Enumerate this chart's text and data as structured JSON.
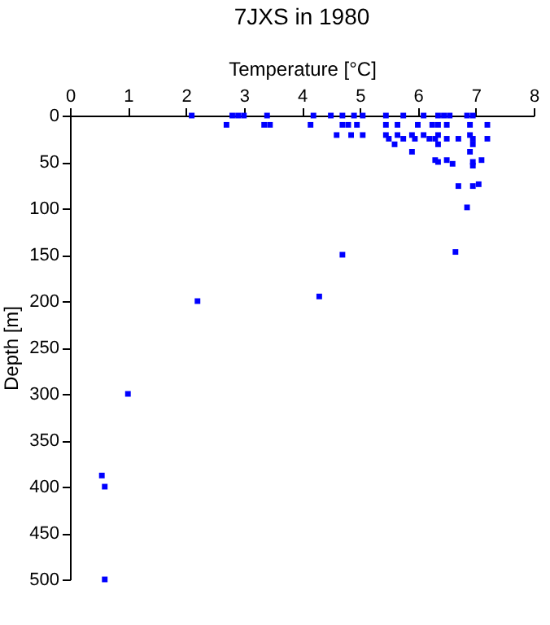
{
  "chart_data": {
    "type": "scatter",
    "title": "7JXS in 1980",
    "xlabel": "Temperature [°C]",
    "ylabel": "Depth [m]",
    "marker": "square",
    "grid": false,
    "xlim": [
      0,
      8
    ],
    "xticks": [
      0,
      1,
      2,
      3,
      4,
      5,
      6,
      7,
      8
    ],
    "ylim": [
      500,
      0
    ],
    "yticks": [
      0,
      50,
      100,
      150,
      200,
      250,
      300,
      350,
      400,
      450,
      500
    ],
    "series": [
      {
        "color": "#0000ff",
        "x": [
          2.1,
          2.8,
          2.9,
          3.0,
          3.4,
          4.2,
          4.5,
          4.7,
          4.9,
          5.05,
          5.45,
          5.75,
          6.1,
          6.35,
          6.45,
          6.55,
          6.85,
          6.95,
          2.7,
          3.35,
          3.45,
          4.15,
          4.7,
          4.8,
          4.95,
          5.45,
          5.65,
          6.0,
          6.25,
          6.35,
          6.5,
          6.9,
          7.2,
          4.6,
          4.85,
          5.05,
          5.45,
          5.65,
          5.9,
          6.1,
          6.35,
          6.9,
          7.2,
          5.5,
          5.75,
          5.95,
          6.2,
          6.3,
          6.5,
          6.7,
          6.95,
          5.6,
          6.35,
          6.95,
          5.9,
          6.9,
          6.3,
          6.35,
          6.5,
          6.6,
          6.95,
          7.1,
          6.95,
          6.7,
          6.95,
          7.05,
          6.85,
          6.65,
          4.7,
          4.3,
          2.2,
          1.0,
          0.55,
          0.6,
          0.6
        ],
        "values": [
          0,
          0,
          0,
          0,
          0,
          0,
          0,
          0,
          0,
          0,
          0,
          0,
          0,
          0,
          0,
          0,
          0,
          0,
          10,
          10,
          10,
          10,
          10,
          10,
          10,
          10,
          10,
          10,
          10,
          10,
          10,
          10,
          10,
          21,
          21,
          21,
          21,
          21,
          21,
          21,
          21,
          21,
          25,
          25,
          25,
          25,
          25,
          25,
          25,
          25,
          25,
          31,
          31,
          31,
          39,
          39,
          48,
          50,
          48,
          52,
          50,
          48,
          54,
          76,
          76,
          74,
          99,
          147,
          150,
          195,
          200,
          300,
          388,
          400,
          500
        ]
      }
    ]
  }
}
